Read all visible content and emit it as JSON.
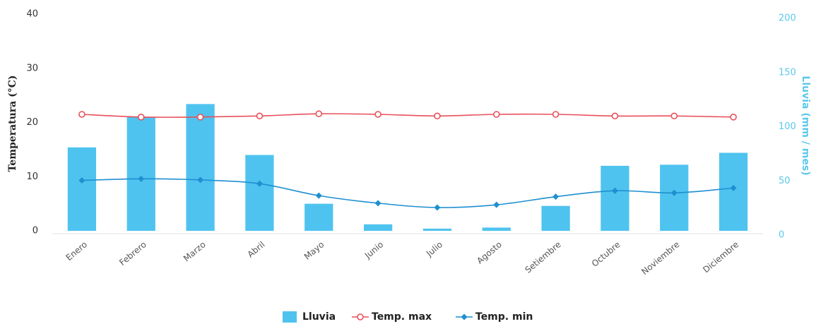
{
  "chart_data": {
    "type": "bar-line",
    "categories": [
      "Enero",
      "Febrero",
      "Marzo",
      "Abril",
      "Mayo",
      "Junio",
      "Julio",
      "Agosto",
      "Setiembre",
      "Octubre",
      "Noviembre",
      "Diciembre"
    ],
    "ylabel": "Temperatura (°C)",
    "y2label": "Lluvia (mm / mes)",
    "ylim": [
      0,
      40
    ],
    "yticks": [
      0,
      10,
      20,
      30,
      40
    ],
    "y2lim": [
      0,
      200
    ],
    "y2ticks": [
      0,
      50,
      100,
      150,
      200
    ],
    "series": [
      {
        "name": "Lluvia",
        "type": "bar",
        "axis": "y2",
        "color": "#4fc3ef",
        "values": [
          77,
          105,
          117,
          70,
          25,
          6,
          2,
          3,
          23,
          60,
          61,
          72
        ]
      },
      {
        "name": "Temp. max",
        "type": "line",
        "color": "#e8505b",
        "marker": "circle",
        "values": [
          21.5,
          21,
          21,
          21.2,
          21.6,
          21.5,
          21.2,
          21.5,
          21.5,
          21.2,
          21.2,
          21
        ]
      },
      {
        "name": "Temp. min",
        "type": "line",
        "color": "#1f8fd0",
        "marker": "diamond",
        "values": [
          9.3,
          9.6,
          9.4,
          8.7,
          6.5,
          5.1,
          4.3,
          4.8,
          6.3,
          7.4,
          7.0,
          7.9
        ]
      }
    ],
    "legend": "bottom"
  }
}
